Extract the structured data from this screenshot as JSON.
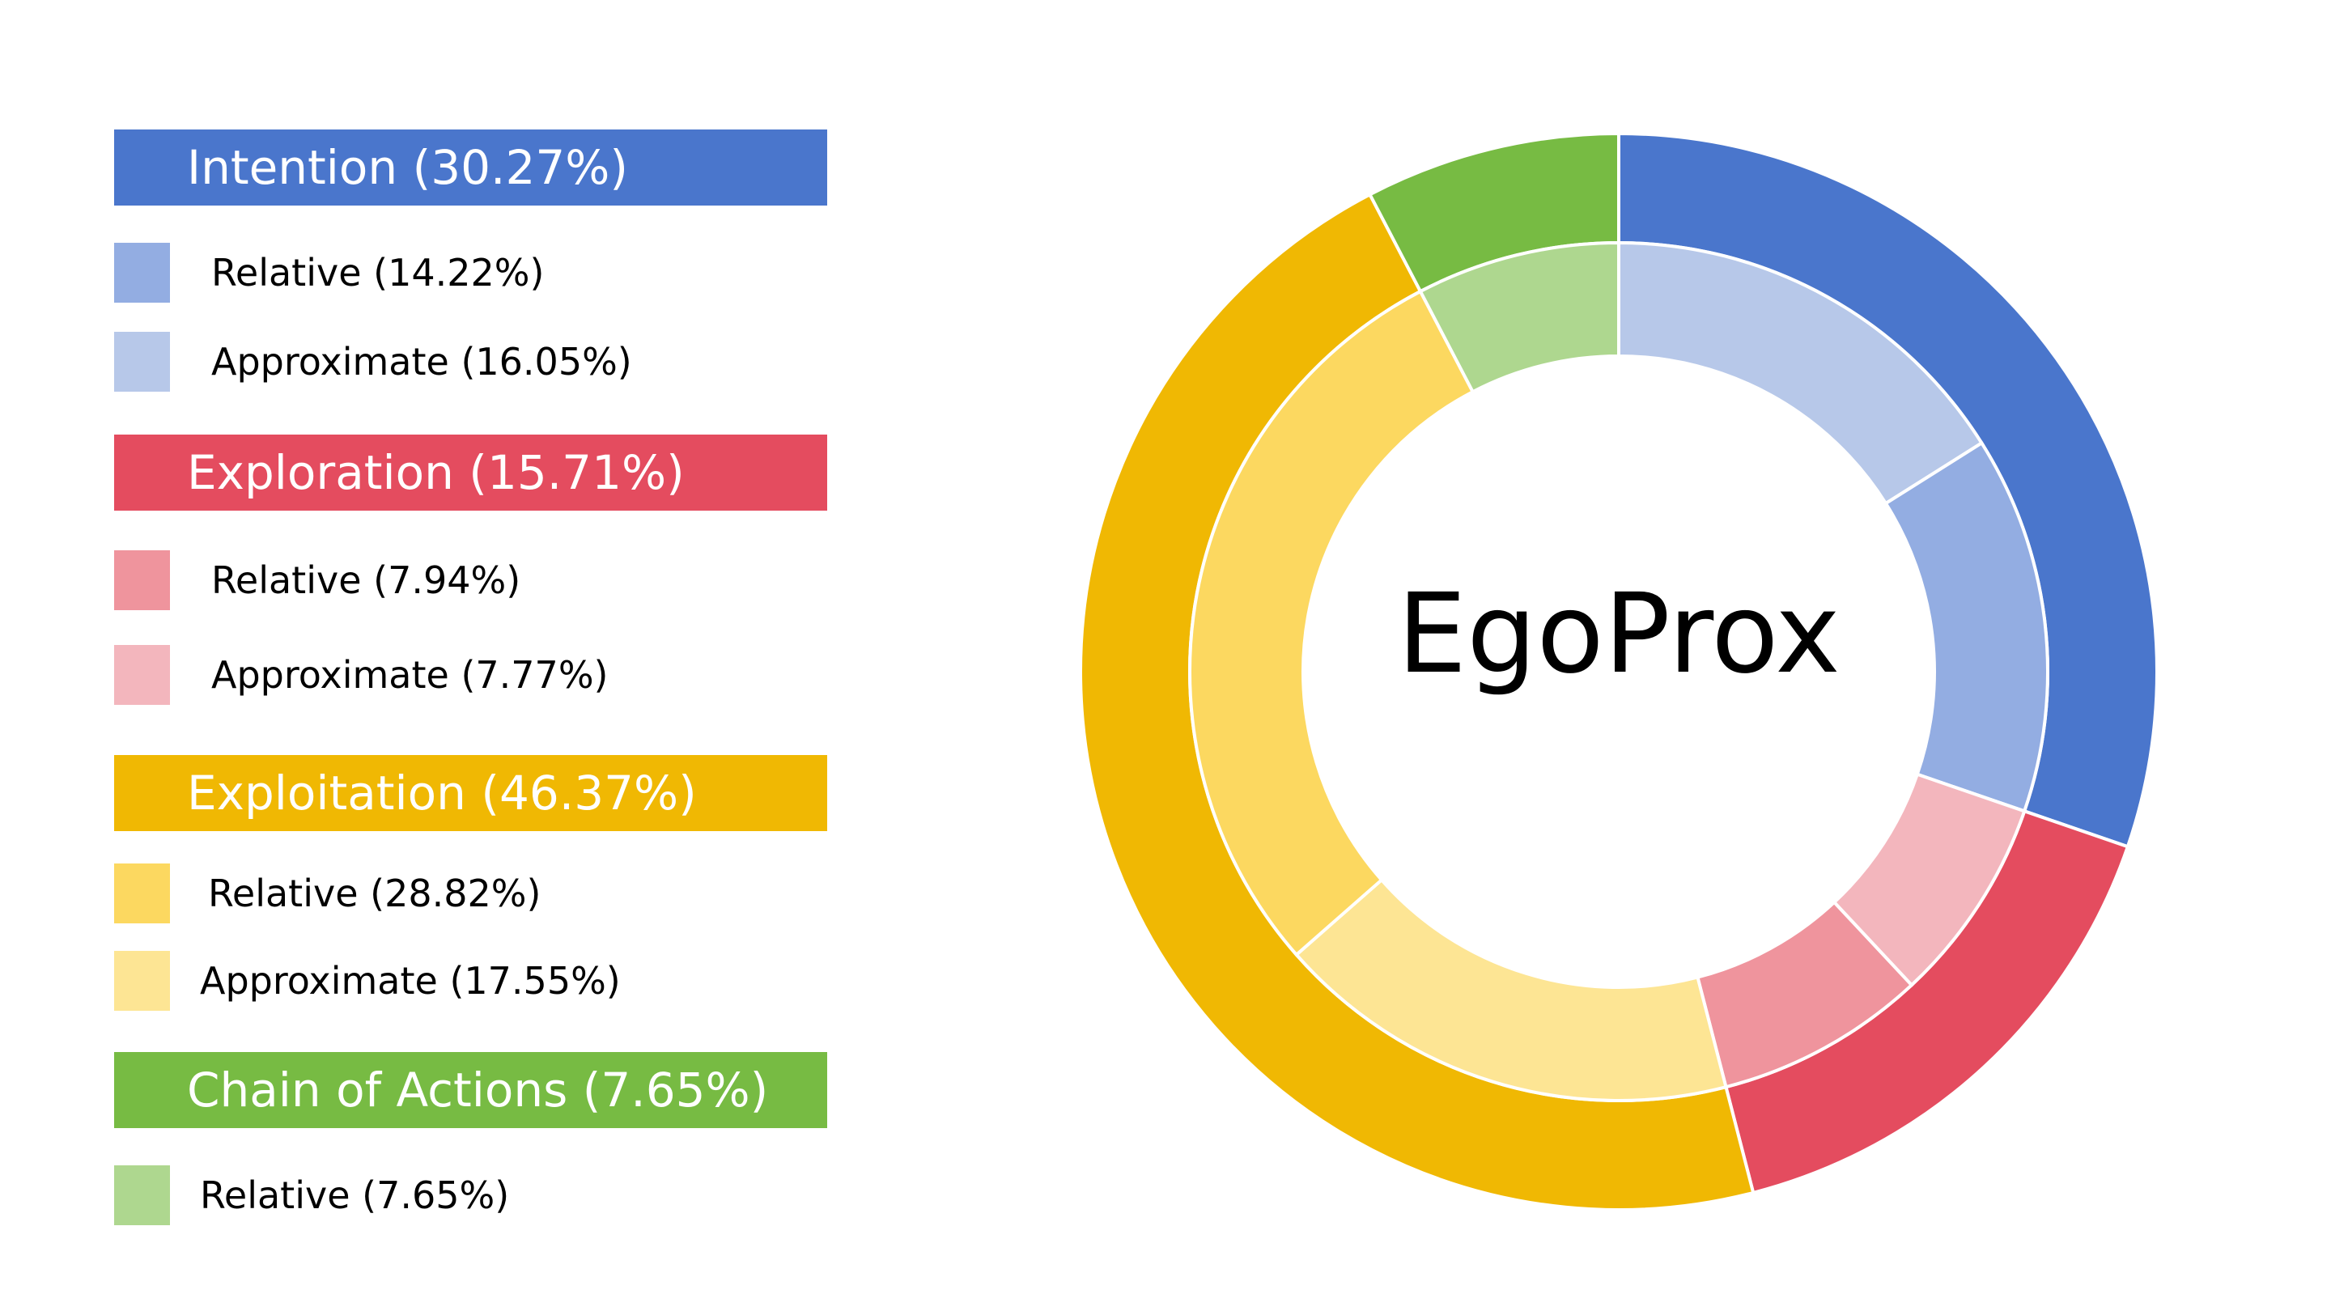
{
  "chart_data": {
    "type": "donut",
    "title": "EgoProx",
    "categories": [
      {
        "name": "Intention",
        "label": "Intention (30.27%)",
        "value": 30.27,
        "color": "#4a76cc",
        "subcategories": [
          {
            "name": "Relative",
            "label": "Relative (14.22%)",
            "value": 14.22,
            "color": "#93ade2"
          },
          {
            "name": "Approximate",
            "label": "Approximate (16.05%)",
            "value": 16.05,
            "color": "#b7c8e9"
          }
        ]
      },
      {
        "name": "Exploration",
        "label": "Exploration (15.71%)",
        "value": 15.71,
        "color": "#e44c5f",
        "subcategories": [
          {
            "name": "Relative",
            "label": "Relative (7.94%)",
            "value": 7.94,
            "color": "#ef949d"
          },
          {
            "name": "Approximate",
            "label": "Approximate (7.77%)",
            "value": 7.77,
            "color": "#f3b6bd"
          }
        ]
      },
      {
        "name": "Exploitation",
        "label": "Exploitation (46.37%)",
        "value": 46.37,
        "color": "#f0b803",
        "subcategories": [
          {
            "name": "Relative",
            "label": "Relative (28.82%)",
            "value": 28.82,
            "color": "#fcd860"
          },
          {
            "name": "Approximate",
            "label": "Approximate (17.55%)",
            "value": 17.55,
            "color": "#fde594"
          }
        ]
      },
      {
        "name": "Chain of Actions",
        "label": "Chain of Actions (7.65%)",
        "value": 7.65,
        "color": "#77bb43",
        "subcategories": [
          {
            "name": "Relative",
            "label": "Relative (7.65%)",
            "value": 7.65,
            "color": "#aed78f"
          }
        ]
      }
    ],
    "outer_ring_order": [
      "Intention",
      "Exploration",
      "Exploitation",
      "Chain of Actions"
    ],
    "inner_ring_order": [
      {
        "category": "Intention",
        "sub": "Approximate"
      },
      {
        "category": "Intention",
        "sub": "Relative"
      },
      {
        "category": "Exploration",
        "sub": "Approximate"
      },
      {
        "category": "Exploration",
        "sub": "Relative"
      },
      {
        "category": "Exploitation",
        "sub": "Approximate"
      },
      {
        "category": "Exploitation",
        "sub": "Relative"
      },
      {
        "category": "Chain of Actions",
        "sub": "Relative"
      }
    ],
    "start_angle": "top",
    "direction": "clockwise",
    "legend_position": "left"
  }
}
